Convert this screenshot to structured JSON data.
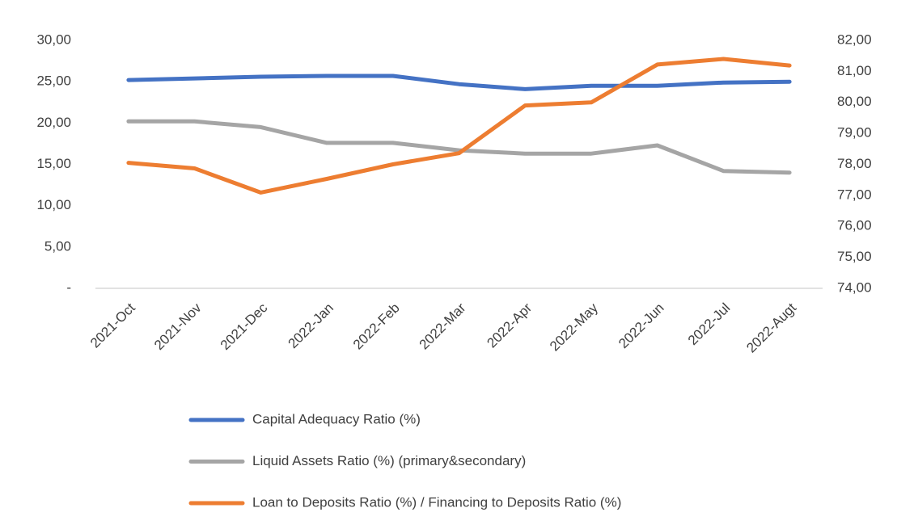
{
  "chart_data": {
    "type": "line",
    "categories": [
      "2021-Oct",
      "2021-Nov",
      "2021-Dec",
      "2022-Jan",
      "2022-Feb",
      "2022-Mar",
      "2022-Apr",
      "2022-May",
      "2022-Jun",
      "2022-Jul",
      "2022-Augt"
    ],
    "series": [
      {
        "name": "Capital Adequacy Ratio (%)",
        "color": "#4472c4",
        "values": [
          25.2,
          25.4,
          25.6,
          25.7,
          25.7,
          24.7,
          24.1,
          24.5,
          24.5,
          24.9,
          25.0
        ]
      },
      {
        "name": "Liquid Assets Ratio (%) (primary&secondary)",
        "color": "#a5a5a5",
        "values": [
          20.2,
          20.2,
          19.5,
          17.6,
          17.6,
          16.7,
          16.3,
          16.3,
          17.3,
          14.2,
          14.0
        ]
      },
      {
        "name": "Loan to Deposits Ratio (%) / Financing to Deposits Ratio (%)",
        "color": "#ed7d31",
        "axis": "y2",
        "values": [
          78.05,
          77.87,
          77.09,
          77.53,
          78.0,
          78.36,
          79.9,
          80.0,
          81.22,
          81.4,
          81.19
        ]
      }
    ],
    "ylim": [
      0,
      30
    ],
    "yticks": [
      {
        "value": 0,
        "label": "-"
      },
      {
        "value": 5,
        "label": "5,00"
      },
      {
        "value": 10,
        "label": "10,00"
      },
      {
        "value": 15,
        "label": "15,00"
      },
      {
        "value": 20,
        "label": "20,00"
      },
      {
        "value": 25,
        "label": "25,00"
      },
      {
        "value": 30,
        "label": "30,00"
      }
    ],
    "y2lim": [
      74,
      82
    ],
    "y2ticks": [
      {
        "value": 74,
        "label": "74,00"
      },
      {
        "value": 75,
        "label": "75,00"
      },
      {
        "value": 76,
        "label": "76,00"
      },
      {
        "value": 77,
        "label": "77,00"
      },
      {
        "value": 78,
        "label": "78,00"
      },
      {
        "value": 79,
        "label": "79,00"
      },
      {
        "value": 80,
        "label": "80,00"
      },
      {
        "value": 81,
        "label": "81,00"
      },
      {
        "value": 82,
        "label": "82,00"
      }
    ],
    "legend": "bottom"
  }
}
